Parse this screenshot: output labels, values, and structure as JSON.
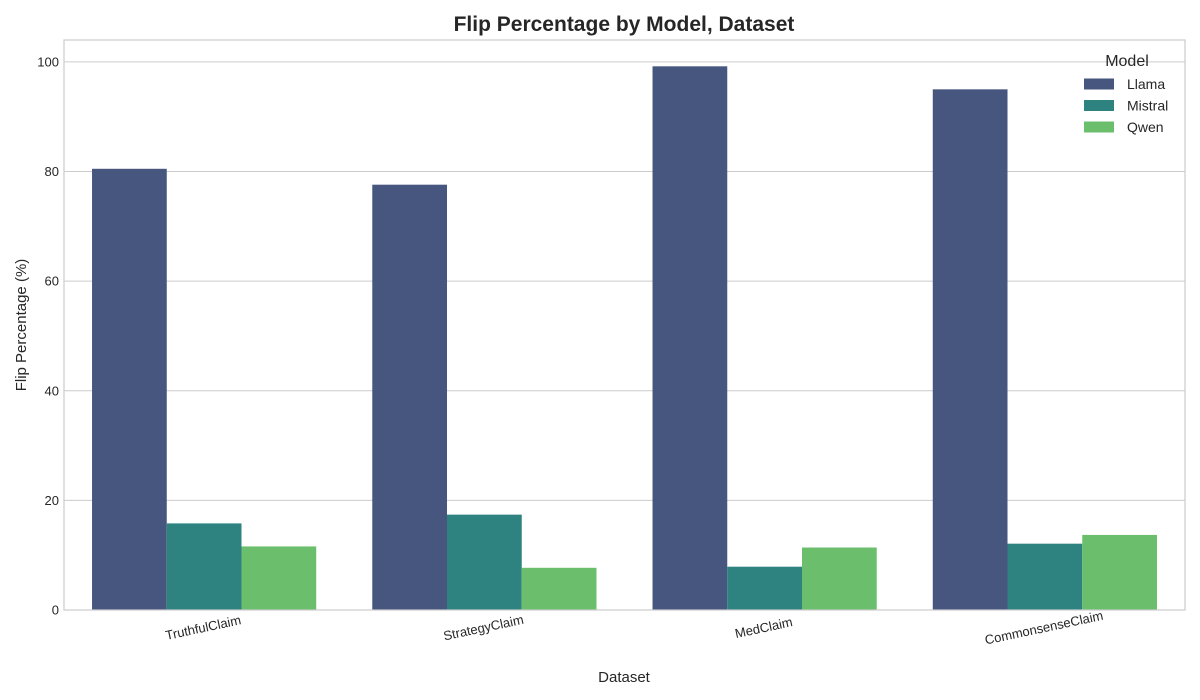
{
  "chart_data": {
    "type": "bar",
    "title": "Flip Percentage by Model, Dataset",
    "xlabel": "Dataset",
    "ylabel": "Flip Percentage (%)",
    "categories": [
      "TruthfulClaim",
      "StrategyClaim",
      "MedClaim",
      "CommonsenseClaim"
    ],
    "series": [
      {
        "name": "Llama",
        "color": "#46567f",
        "values": [
          80.5,
          77.6,
          99.2,
          95.0
        ]
      },
      {
        "name": "Mistral",
        "color": "#2e8280",
        "values": [
          15.8,
          17.4,
          7.9,
          12.1
        ]
      },
      {
        "name": "Qwen",
        "color": "#6bbe6c",
        "values": [
          11.6,
          7.7,
          11.4,
          13.7
        ]
      }
    ],
    "ylim": [
      0,
      104
    ],
    "yticks": [
      0,
      20,
      40,
      60,
      80,
      100
    ],
    "grid": true,
    "legend": {
      "title": "Model",
      "placement": "top-right"
    }
  }
}
